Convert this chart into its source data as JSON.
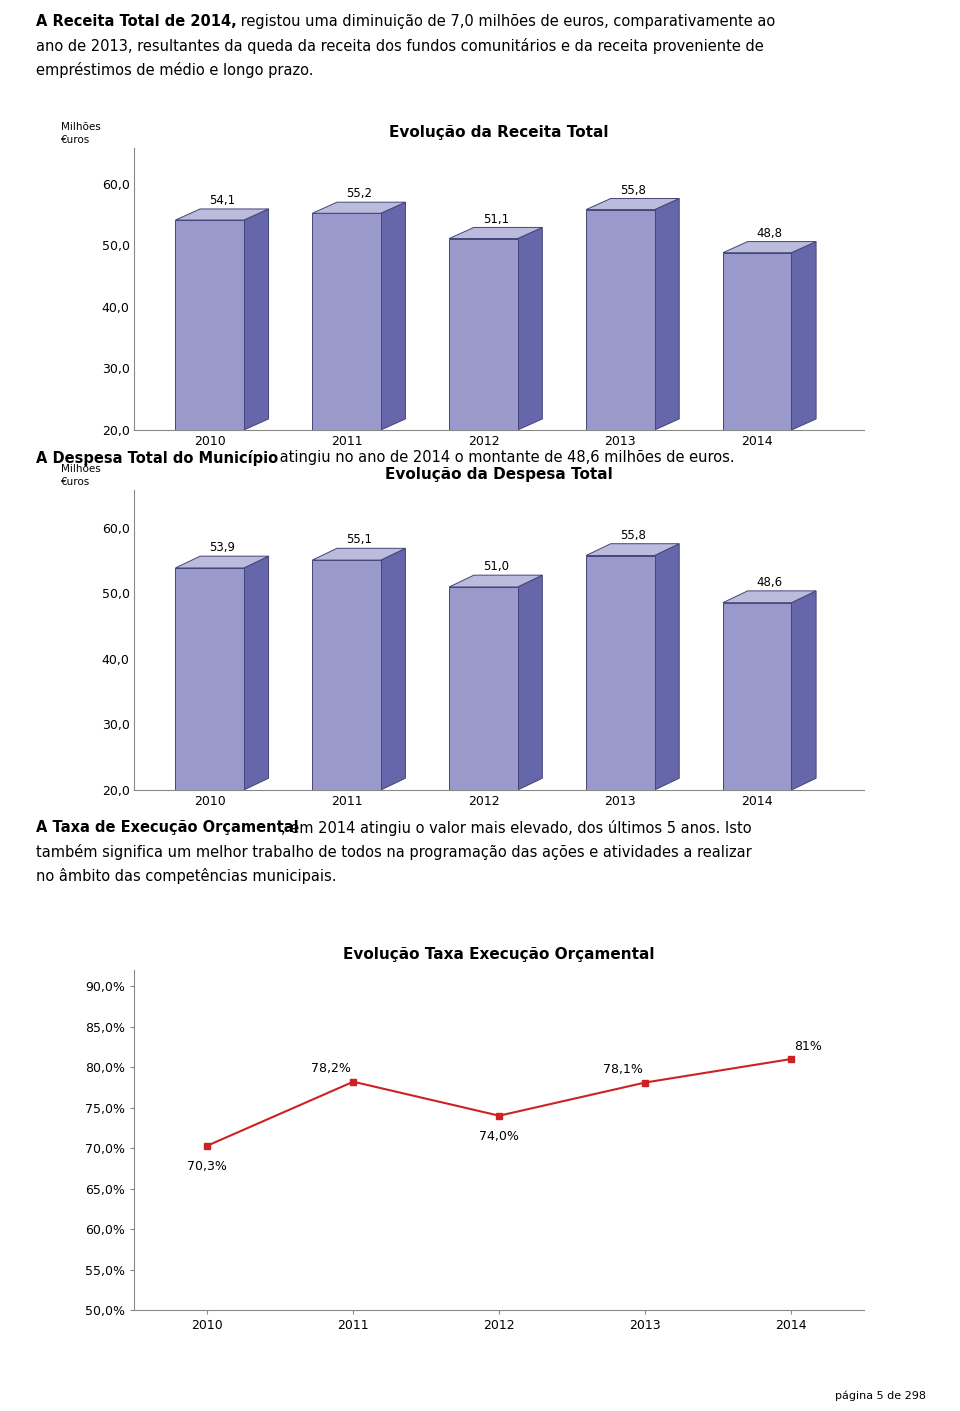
{
  "page_bg": "#ffffff",
  "para1_bold": "A Receita Total de 2014,",
  "para1_line1_rest": " registou uma diminuição de 7,0 milhões de euros, comparativamente ao",
  "para1_line2": "ano de 2013, resultantes da queda da receita dos fundos comunitários e da receita proveniente de",
  "para1_line3": "empréstimos de médio e longo prazo.",
  "chart1_title": "Evolução da Receita Total",
  "chart1_ylabel": "Milhões\n€uros",
  "chart1_years": [
    2010,
    2011,
    2012,
    2013,
    2014
  ],
  "chart1_values": [
    54.1,
    55.2,
    51.1,
    55.8,
    48.8
  ],
  "chart1_ylim": [
    20.0,
    62.0
  ],
  "chart1_yticks": [
    20.0,
    30.0,
    40.0,
    50.0,
    60.0
  ],
  "chart1_bar_face": "#9999cc",
  "chart1_bar_side": "#6666aa",
  "chart1_bar_top": "#bbbbdd",
  "para2_bold": "A Despesa Total do Município",
  "para2_rest": " atingiu no ano de 2014 o montante de 48,6 milhões de euros.",
  "chart2_title": "Evolução da Despesa Total",
  "chart2_ylabel": "Milhões\n€uros",
  "chart2_years": [
    2010,
    2011,
    2012,
    2013,
    2014
  ],
  "chart2_values": [
    53.9,
    55.1,
    51.0,
    55.8,
    48.6
  ],
  "chart2_ylim": [
    20.0,
    62.0
  ],
  "chart2_yticks": [
    20.0,
    30.0,
    40.0,
    50.0,
    60.0
  ],
  "chart2_bar_face": "#9999cc",
  "chart2_bar_side": "#6666aa",
  "chart2_bar_top": "#bbbbdd",
  "para3_bold": "A Taxa de Execução Orçamental",
  "para3_line1_rest": ", em 2014 atingiu o valor mais elevado, dos últimos 5 anos. Isto",
  "para3_line2": "também significa um melhor trabalho de todos na programação das ações e atividades a realizar",
  "para3_line3": "no âmbito das competências municipais.",
  "chart3_title": "Evolução Taxa Execução Orçamental",
  "chart3_years": [
    2010,
    2011,
    2012,
    2013,
    2014
  ],
  "chart3_values": [
    70.3,
    78.2,
    74.0,
    78.1,
    81.0
  ],
  "chart3_labels": [
    "70,3%",
    "78,2%",
    "74,0%",
    "78,1%",
    "81%"
  ],
  "chart3_ylim": [
    50.0,
    92.0
  ],
  "chart3_yticks": [
    50.0,
    55.0,
    60.0,
    65.0,
    70.0,
    75.0,
    80.0,
    85.0,
    90.0
  ],
  "chart3_ytick_labels": [
    "50,0%",
    "55,0%",
    "60,0%",
    "65,0%",
    "70,0%",
    "75,0%",
    "80,0%",
    "85,0%",
    "90,0%"
  ],
  "chart3_line_color": "#cc2222",
  "footer": "página 5 de 298"
}
